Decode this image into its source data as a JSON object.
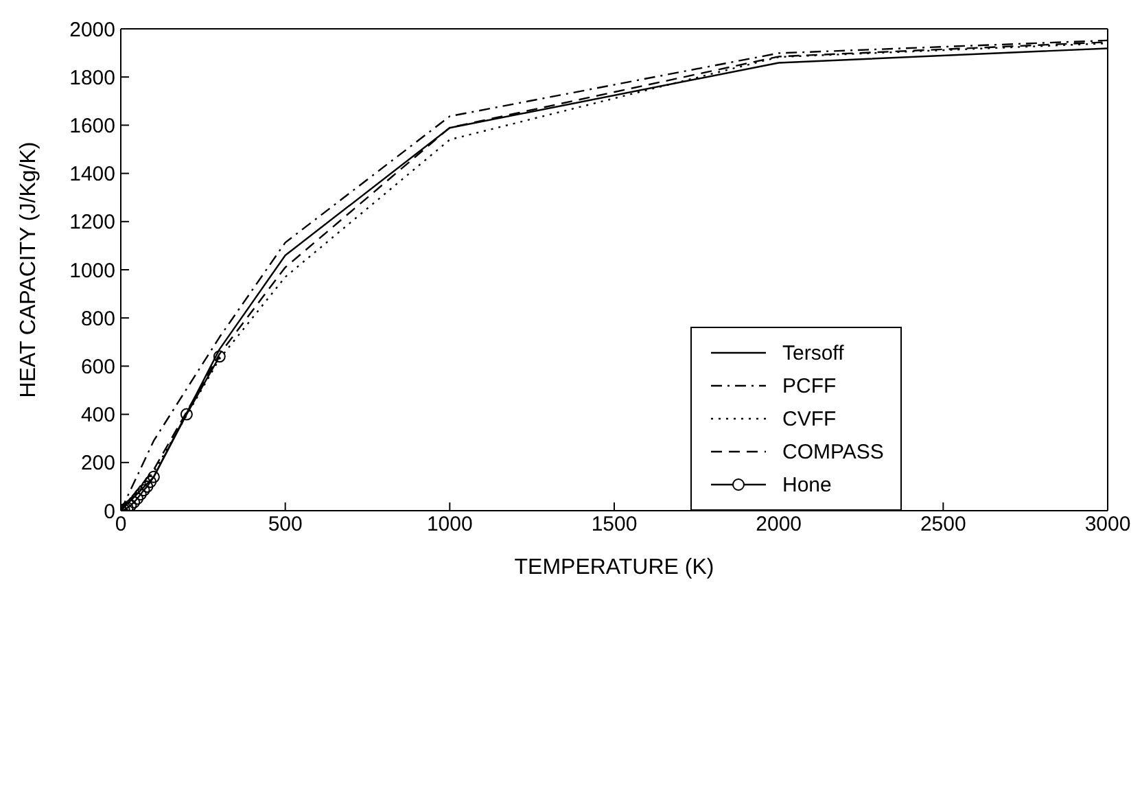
{
  "chart_data": {
    "type": "line",
    "xlabel": "TEMPERATURE (K)",
    "ylabel": "HEAT CAPACITY (J/Kg/K)",
    "xlim": [
      0,
      3000
    ],
    "xticks": [
      0,
      500,
      1000,
      1500,
      2000,
      2500,
      3000
    ],
    "ylim": [
      0,
      2000
    ],
    "yticks": [
      0,
      200,
      400,
      600,
      800,
      1000,
      1200,
      1400,
      1600,
      1800,
      2000
    ],
    "legend": "right",
    "series": [
      {
        "name": "Tersoff",
        "color": "#000000",
        "line_style": "solid",
        "marker": "none",
        "x": [
          0,
          100,
          300,
          500,
          1000,
          2000,
          3000
        ],
        "values": [
          0,
          140,
          670,
          1060,
          1589,
          1859,
          1919
        ]
      },
      {
        "name": "PCFF",
        "color": "#000000",
        "line_style": "dashdot",
        "marker": "none",
        "x": [
          0,
          100,
          300,
          500,
          1000,
          2000,
          3000
        ],
        "values": [
          0,
          290,
          720,
          1113,
          1637,
          1899,
          1952
        ]
      },
      {
        "name": "CVFF",
        "color": "#000000",
        "line_style": "dotted",
        "marker": "none",
        "x": [
          0,
          100,
          300,
          500,
          1000,
          2000,
          3000
        ],
        "values": [
          0,
          160,
          630,
          970,
          1540,
          1883,
          1940
        ]
      },
      {
        "name": "COMPASS",
        "color": "#000000",
        "line_style": "dashed",
        "marker": "none",
        "x": [
          0,
          100,
          300,
          500,
          1000,
          2000,
          3000
        ],
        "values": [
          0,
          170,
          650,
          1010,
          1590,
          1885,
          1945
        ]
      },
      {
        "name": "Hone",
        "color": "#000000",
        "line_style": "solid",
        "marker": "circle",
        "x": [
          0,
          10,
          20,
          30,
          40,
          50,
          60,
          70,
          80,
          90,
          100,
          200,
          300
        ],
        "values": [
          0,
          4,
          12,
          22,
          35,
          50,
          68,
          85,
          100,
          120,
          140,
          400,
          640
        ]
      }
    ]
  }
}
